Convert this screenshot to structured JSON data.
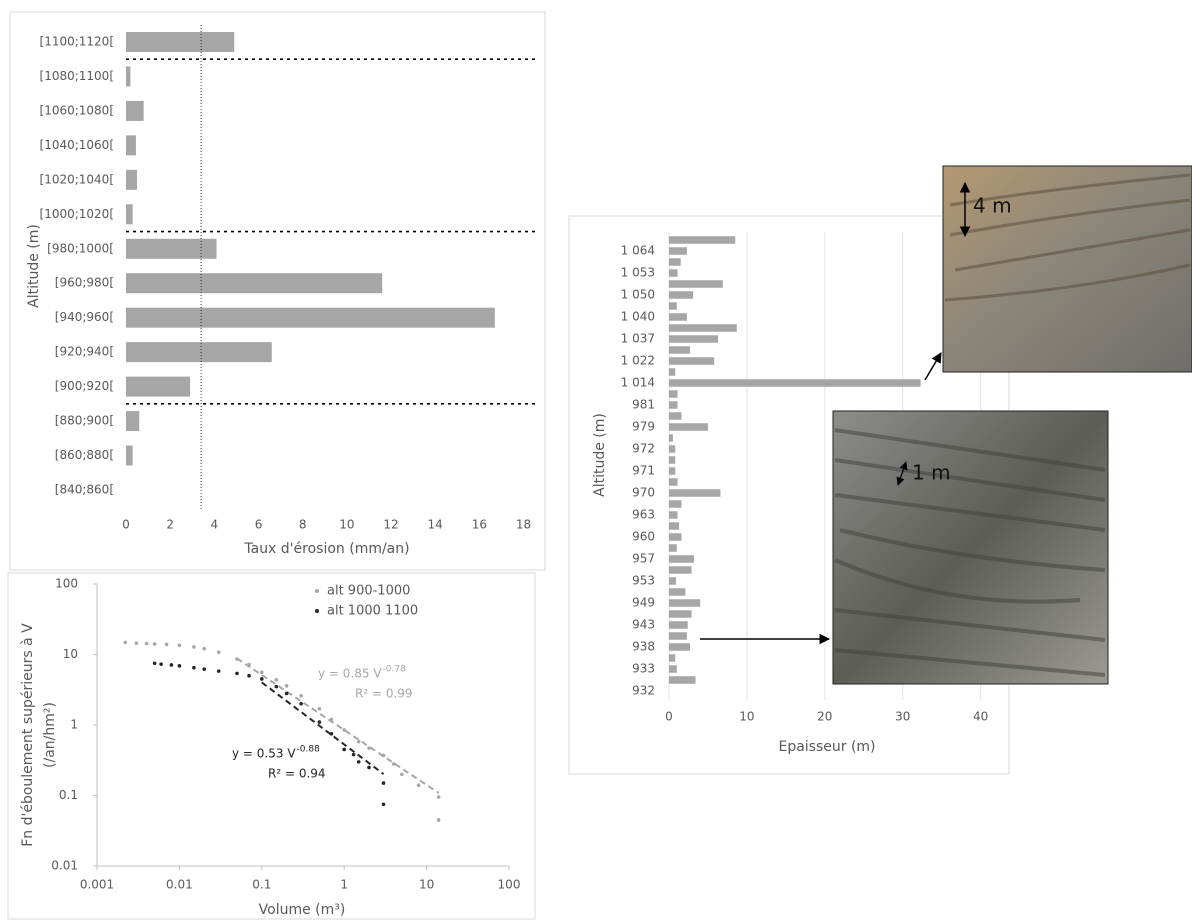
{
  "chart_data": [
    {
      "type": "bar",
      "orientation": "horizontal",
      "y_label": "Altitude (m)",
      "x_label": "Taux d'érosion (mm/an)",
      "categories": [
        "[1100;1120[",
        "[1080;1100[",
        "[1060;1080[",
        "[1040;1060[",
        "[1020;1040[",
        "[1000;1020[",
        "[980;1000[",
        "[960;980[",
        "[940;960[",
        "[920;940[",
        "[900;920[",
        "[880;900[",
        "[860;880[",
        "[840;860["
      ],
      "values": [
        4.9,
        0.2,
        0.8,
        0.45,
        0.5,
        0.3,
        4.1,
        11.6,
        16.7,
        6.6,
        2.9,
        0.6,
        0.3,
        0
      ],
      "color": "#a6a6a6",
      "xlim": [
        0,
        18.7
      ],
      "xticks": [
        0,
        2,
        4,
        6,
        8,
        10,
        12,
        14,
        16,
        18
      ],
      "reference_line": 3.4,
      "grid": false
    },
    {
      "type": "scatter",
      "xlog": true,
      "ylog": true,
      "x_label": "Volume (m³)",
      "y_label": [
        "Fn d'éboulement  supérieurs à V",
        "(/an/hm²)"
      ],
      "xlim": [
        0.001,
        100
      ],
      "xticks": [
        0.001,
        0.01,
        0.1,
        1,
        10,
        100
      ],
      "ylim": [
        0.01,
        100
      ],
      "yticks": [
        0.01,
        0.1,
        1,
        10,
        100
      ],
      "legend": "top-right",
      "series": [
        {
          "name": "alt 900-1000",
          "color": "#a6a6a6",
          "x": [
            0.0022,
            0.003,
            0.004,
            0.005,
            0.007,
            0.01,
            0.015,
            0.02,
            0.03,
            0.05,
            0.07,
            0.1,
            0.15,
            0.2,
            0.3,
            0.5,
            0.7,
            1,
            1.5,
            2,
            3,
            4,
            5,
            8,
            14,
            14
          ],
          "values": [
            14.8,
            14.5,
            14.3,
            14.1,
            13.9,
            13.5,
            12.8,
            12.1,
            10.8,
            8.6,
            7.2,
            5.6,
            4.4,
            3.6,
            2.6,
            1.7,
            1.2,
            0.85,
            0.58,
            0.47,
            0.37,
            0.28,
            0.2,
            0.14,
            0.095,
            0.045
          ],
          "trendline": {
            "a": 0.85,
            "b": -0.78,
            "xrange": [
              0.05,
              14
            ],
            "label": "y = 0.85 V",
            "exponent": "-0.78",
            "r2_label": "R² = 0.99"
          }
        },
        {
          "name": "alt 1000 1100",
          "color": "#262626",
          "x": [
            0.005,
            0.006,
            0.008,
            0.01,
            0.015,
            0.02,
            0.03,
            0.05,
            0.07,
            0.1,
            0.15,
            0.2,
            0.3,
            0.5,
            0.7,
            1,
            1.3,
            1.5,
            2,
            3,
            3
          ],
          "values": [
            7.5,
            7.3,
            7.1,
            6.9,
            6.5,
            6.2,
            5.8,
            5.4,
            5.0,
            4.5,
            3.5,
            2.8,
            2.0,
            1.1,
            0.75,
            0.45,
            0.38,
            0.3,
            0.25,
            0.15,
            0.075
          ],
          "trendline": {
            "a": 0.53,
            "b": -0.88,
            "xrange": [
              0.1,
              3
            ],
            "label": "y = 0.53 V",
            "exponent": "-0.88",
            "r2_label": "R² = 0.94"
          }
        }
      ]
    },
    {
      "type": "bar",
      "orientation": "horizontal",
      "y_label": "Altitude (m)",
      "x_label": "Epaisseur (m)",
      "categories": [
        null,
        "1 064",
        null,
        "1 053",
        null,
        "1 050",
        null,
        "1 040",
        null,
        "1 037",
        null,
        "1 022",
        null,
        "1 014",
        null,
        "981",
        null,
        "979",
        null,
        "972",
        null,
        "971",
        null,
        "970",
        null,
        "963",
        null,
        "960",
        null,
        "957",
        null,
        "953",
        null,
        "949",
        null,
        "943",
        null,
        "938",
        null,
        "933",
        null,
        "932"
      ],
      "values": [
        8.5,
        2.3,
        1.5,
        1.1,
        6.9,
        3.1,
        1.0,
        2.3,
        8.7,
        6.3,
        2.7,
        5.8,
        0.8,
        32.3,
        1.1,
        1.1,
        1.6,
        5.0,
        0.5,
        0.8,
        0.8,
        0.8,
        1.1,
        6.6,
        1.6,
        1.1,
        1.3,
        1.6,
        1.0,
        3.2,
        2.9,
        0.9,
        2.1,
        4.0,
        2.9,
        2.4,
        2.3,
        2.7,
        0.8,
        1.0,
        3.4,
        0
      ],
      "color": "#a6a6a6",
      "xlim": [
        0,
        43
      ],
      "xticks": [
        0,
        10,
        20,
        30,
        40
      ],
      "grid": true
    }
  ],
  "photos": [
    {
      "label": "4 m"
    },
    {
      "label": "1 m"
    }
  ]
}
